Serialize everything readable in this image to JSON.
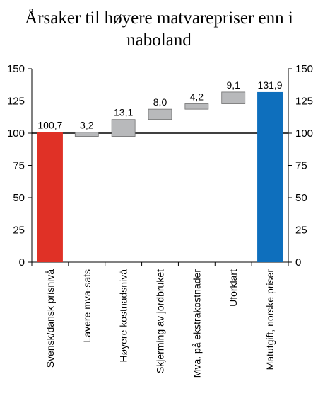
{
  "chart_data": {
    "type": "bar",
    "subtype": "waterfall",
    "title_lines": [
      "Årsaker til høyere matvarepriser enn i",
      "naboland"
    ],
    "categories": [
      "Svensk/dansk prisnivå",
      "Lavere mva-sats",
      "Høyere kostnadsnivå",
      "Skjerming av jordbruket",
      "Mva. på ekstrakostnader",
      "Uforklart",
      "Matutgift, norske priser"
    ],
    "bars": [
      {
        "category": "Svensk/dansk prisnivå",
        "kind": "total",
        "start": 0,
        "end": 100.7,
        "label": "100,7",
        "color": "#e03126"
      },
      {
        "category": "Lavere mva-sats",
        "kind": "change",
        "start": 100.7,
        "end": 97.5,
        "label": "3,2",
        "color": "#b8b9bb"
      },
      {
        "category": "Høyere kostnadsnivå",
        "kind": "change",
        "start": 97.5,
        "end": 110.6,
        "label": "13,1",
        "color": "#b8b9bb"
      },
      {
        "category": "Skjerming av jordbruket",
        "kind": "change",
        "start": 110.6,
        "end": 118.6,
        "label": "8,0",
        "color": "#b8b9bb"
      },
      {
        "category": "Mva. på ekstrakostnader",
        "kind": "change",
        "start": 118.6,
        "end": 122.8,
        "label": "4,2",
        "color": "#b8b9bb"
      },
      {
        "category": "Uforklart",
        "kind": "change",
        "start": 122.8,
        "end": 131.9,
        "label": "9,1",
        "color": "#b8b9bb"
      },
      {
        "category": "Matutgift, norske priser",
        "kind": "total",
        "start": 0,
        "end": 131.9,
        "label": "131,9",
        "color": "#0e6fbd"
      }
    ],
    "ylim": [
      0,
      150
    ],
    "yticks": [
      0,
      25,
      50,
      75,
      100,
      125,
      150
    ],
    "ytick_labels": [
      "0",
      "25",
      "50",
      "75",
      "100",
      "125",
      "150"
    ],
    "y_axis_both_sides": true,
    "reference_line": 100,
    "grid": false,
    "xlabel": "",
    "ylabel": ""
  }
}
